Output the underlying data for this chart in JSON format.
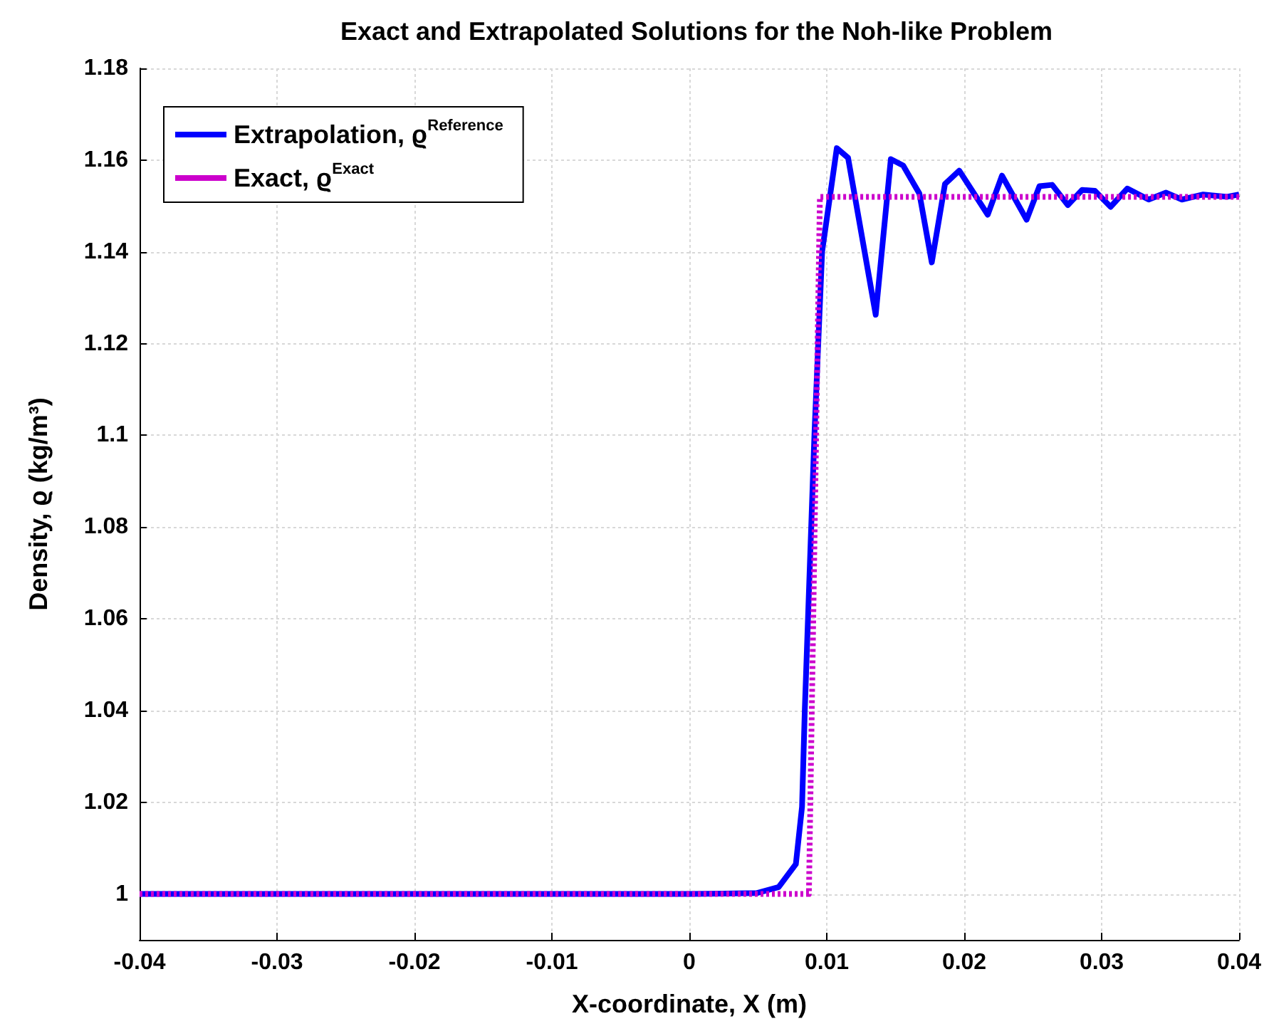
{
  "chart_data": {
    "type": "line",
    "title": "Exact and Extrapolated Solutions for the Noh-like Problem",
    "xlabel": "X-coordinate, X (m)",
    "ylabel": "Density, ϱ (kg/m³)",
    "xlim": [
      -0.04,
      0.04
    ],
    "xticks": [
      -0.04,
      -0.03,
      -0.02,
      -0.01,
      0,
      0.01,
      0.02,
      0.03,
      0.04
    ],
    "ylim": [
      0.99,
      1.18
    ],
    "yticks": [
      1,
      1.02,
      1.04,
      1.06,
      1.08,
      1.1,
      1.12,
      1.14,
      1.16,
      1.18
    ],
    "grid": true,
    "legend": "top left",
    "marker": "none",
    "series": [
      {
        "name": "Extrapolation, ϱ$^{Reference}$",
        "color": "#0000ff",
        "line_style": "solid",
        "x": [
          -0.04,
          0.0,
          0.0049,
          0.0065,
          0.00775,
          0.0082,
          0.0084,
          0.0091,
          0.00966,
          0.01073,
          0.01155,
          0.01356,
          0.01466,
          0.01556,
          0.01674,
          0.01764,
          0.0186,
          0.01964,
          0.02171,
          0.02275,
          0.02454,
          0.02547,
          0.0264,
          0.02754,
          0.02858,
          0.02951,
          0.03065,
          0.03187,
          0.03342,
          0.03469,
          0.03584,
          0.03739,
          0.03912,
          0.04
        ],
        "values": [
          1.0,
          1.0,
          1.0002,
          1.0015,
          1.0065,
          1.019,
          1.04,
          1.1,
          1.14,
          1.1626,
          1.1605,
          1.1263,
          1.1602,
          1.1588,
          1.1527,
          1.1377,
          1.1548,
          1.1577,
          1.1481,
          1.1566,
          1.147,
          1.1543,
          1.1546,
          1.1502,
          1.1535,
          1.1533,
          1.1498,
          1.1538,
          1.1514,
          1.1529,
          1.1514,
          1.1525,
          1.152,
          1.1525
        ]
      },
      {
        "name": "Exact, ϱ$^{Exact}$",
        "color": "#cc00cc",
        "line_style": "dotted",
        "x": [
          -0.04,
          0.0087,
          0.0095,
          0.04
        ],
        "values": [
          1.0,
          1.0,
          1.152,
          1.152
        ]
      }
    ]
  }
}
